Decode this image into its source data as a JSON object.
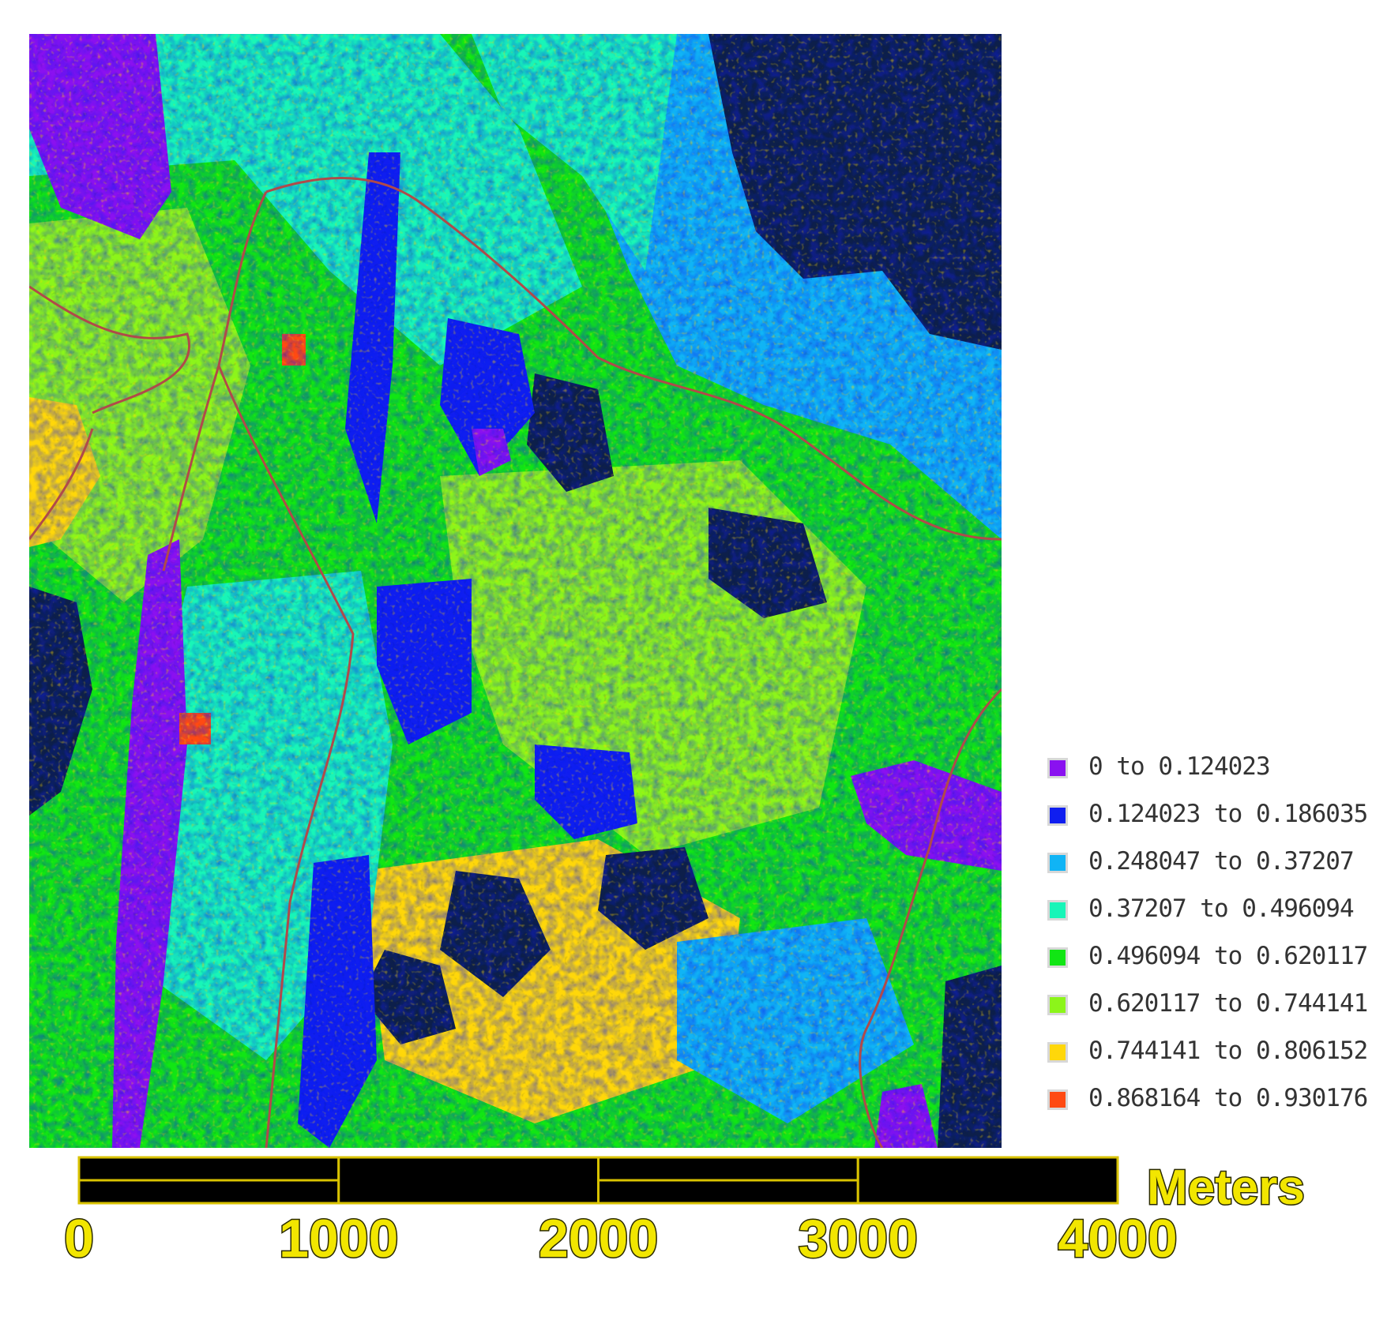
{
  "legend": {
    "items": [
      {
        "label": "0 to 0.124023",
        "color": "#8a11f0"
      },
      {
        "label": "0.124023 to 0.186035",
        "color": "#0f1ef0"
      },
      {
        "label": "0.248047 to 0.37207",
        "color": "#10b4f5"
      },
      {
        "label": "0.37207 to 0.496094",
        "color": "#18f5b8"
      },
      {
        "label": "0.496094 to 0.620117",
        "color": "#11e614"
      },
      {
        "label": "0.620117 to 0.744141",
        "color": "#8cf51a"
      },
      {
        "label": "0.744141 to 0.806152",
        "color": "#ffd70a"
      },
      {
        "label": "0.868164 to 0.930176",
        "color": "#ff4a12"
      }
    ]
  },
  "scalebar": {
    "unit": "Meters",
    "ticks": [
      "0",
      "1000",
      "2000",
      "3000",
      "4000"
    ],
    "colors": {
      "bar": "#000000",
      "outline": "#d8c200",
      "text": "#f2e600",
      "text_shadow": "#2a2a00"
    }
  },
  "map": {
    "colors": {
      "dark_shadow": "#0d1f4a",
      "road": "#b04a4a",
      "classes": [
        "#8a11f0",
        "#0f1ef0",
        "#10b4f5",
        "#18f5b8",
        "#11e614",
        "#8cf51a",
        "#ffd70a",
        "#ff4a12"
      ]
    }
  }
}
